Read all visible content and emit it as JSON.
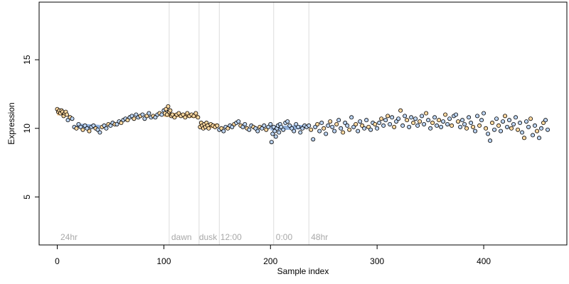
{
  "chart_data": {
    "type": "scatter",
    "title": "",
    "xlabel": "Sample index",
    "ylabel": "Expression",
    "xlim": [
      -17,
      478
    ],
    "ylim": [
      1.5,
      19.2
    ],
    "x_ticks": [
      0,
      100,
      200,
      300,
      400
    ],
    "y_ticks": [
      5,
      10,
      15
    ],
    "grid": false,
    "legend": "none",
    "colors": {
      "background": "#ffffff",
      "frame": "#000000",
      "divider": "#dcdcdc",
      "label": "#a8a8a8",
      "point_stroke": "#000000",
      "light": "#ffd9a0",
      "dark": "#bcd4f2",
      "band_light": "#f2b25c",
      "band_dark": "#7ea4d8"
    },
    "region_dividers": [
      105,
      133,
      152,
      203,
      236
    ],
    "region_labels": [
      {
        "x": 3,
        "text": "24hr"
      },
      {
        "x": 107,
        "text": "dawn"
      },
      {
        "x": 133,
        "text": "dusk"
      },
      {
        "x": 153,
        "text": "12:00"
      },
      {
        "x": 205,
        "text": "0:00"
      },
      {
        "x": 238,
        "text": "48hr"
      }
    ],
    "trend_segments": [
      {
        "group": "light",
        "x": [
          0,
          8
        ],
        "y": [
          11.1,
          11.1
        ]
      },
      {
        "group": "dark",
        "x": [
          18,
          40
        ],
        "y": [
          10.2,
          10.1
        ]
      },
      {
        "group": "light",
        "x": [
          100,
          132
        ],
        "y": [
          11.0,
          10.9
        ]
      },
      {
        "group": "light",
        "x": [
          133,
          150
        ],
        "y": [
          10.1,
          10.2
        ]
      },
      {
        "group": "dark",
        "x": [
          200,
          232
        ],
        "y": [
          10.0,
          10.1
        ]
      }
    ],
    "series": [
      {
        "name": "",
        "group": "light",
        "x": [
          0,
          1,
          2,
          3,
          4,
          5,
          6,
          7,
          8,
          9
        ],
        "y": [
          11.4,
          11.2,
          11.3,
          11.1,
          11.3,
          11.2,
          10.9,
          11.1,
          11.2,
          11.0
        ]
      },
      {
        "name": "",
        "group": "mixed",
        "x": [
          10,
          12,
          14,
          16,
          18,
          20,
          22,
          24,
          26,
          28,
          30,
          32,
          34,
          36,
          38,
          40,
          42,
          44,
          46,
          48,
          50,
          52,
          54,
          56,
          58,
          60,
          62,
          64,
          66,
          68,
          70,
          72,
          74,
          76,
          78,
          80,
          82,
          84,
          86,
          88,
          90,
          92,
          94,
          96,
          98,
          100
        ],
        "y": [
          10.6,
          10.8,
          10.7,
          10.1,
          10.0,
          10.3,
          10.1,
          9.9,
          10.2,
          10.0,
          9.8,
          10.1,
          10.2,
          10.0,
          9.9,
          9.7,
          10.1,
          10.2,
          10.0,
          10.3,
          10.2,
          10.4,
          10.3,
          10.3,
          10.5,
          10.4,
          10.6,
          10.7,
          10.6,
          10.8,
          10.9,
          10.7,
          11.0,
          10.8,
          10.9,
          11.0,
          10.7,
          10.9,
          11.1,
          10.8,
          10.9,
          10.8,
          11.0,
          11.1,
          11.0,
          11.3
        ]
      },
      {
        "name": "",
        "group": "light",
        "x": [
          101,
          102,
          103,
          104,
          105,
          106,
          107,
          108,
          110,
          112,
          114,
          116,
          118,
          120,
          122,
          124,
          126,
          128,
          130,
          132
        ],
        "y": [
          11.1,
          11.4,
          11.0,
          11.6,
          11.2,
          11.3,
          10.9,
          11.0,
          10.8,
          11.0,
          11.1,
          10.9,
          11.0,
          10.8,
          11.1,
          10.9,
          11.0,
          10.9,
          11.1,
          10.8
        ]
      },
      {
        "name": "",
        "group": "light",
        "x": [
          134,
          135,
          136,
          137,
          138,
          139,
          140,
          141,
          142,
          144,
          146,
          148,
          150
        ],
        "y": [
          10.1,
          10.4,
          10.2,
          10.0,
          10.3,
          10.1,
          10.4,
          10.2,
          10.0,
          10.3,
          10.2,
          10.1,
          10.2
        ]
      },
      {
        "name": "",
        "group": "mixed",
        "x": [
          152,
          154,
          156,
          158,
          160,
          162,
          164,
          166,
          168,
          170,
          172,
          174,
          176,
          178,
          180,
          182,
          184,
          186,
          188,
          190,
          192,
          194,
          196,
          198,
          200
        ],
        "y": [
          9.9,
          10.0,
          9.8,
          10.1,
          10.0,
          10.2,
          10.1,
          10.3,
          10.4,
          10.5,
          10.2,
          10.1,
          10.3,
          10.0,
          9.9,
          10.2,
          10.1,
          10.0,
          9.8,
          10.1,
          10.0,
          10.2,
          9.9,
          10.1,
          10.3
        ]
      },
      {
        "name": "",
        "group": "dark",
        "x": [
          201,
          202,
          203,
          204,
          205,
          206,
          207,
          208,
          209,
          210,
          212,
          214,
          216,
          218,
          220,
          222,
          224,
          226,
          228,
          230,
          232,
          234
        ],
        "y": [
          9.0,
          9.6,
          10.1,
          9.8,
          9.4,
          10.0,
          10.2,
          9.7,
          10.3,
          10.1,
          9.9,
          10.4,
          10.5,
          10.2,
          10.0,
          9.8,
          10.3,
          10.1,
          9.7,
          10.0,
          10.2,
          10.1
        ]
      },
      {
        "name": "",
        "group": "mixed",
        "x": [
          236,
          238,
          240,
          242,
          244,
          246,
          248,
          250,
          252,
          254,
          256,
          258,
          260,
          262,
          264,
          266,
          268,
          270,
          272,
          274,
          276,
          278,
          280,
          282,
          284,
          286,
          288,
          290,
          292,
          294,
          296,
          298,
          300
        ],
        "y": [
          10.2,
          9.9,
          9.2,
          10.1,
          10.3,
          9.8,
          10.4,
          10.0,
          9.6,
          10.2,
          10.5,
          10.1,
          9.8,
          10.3,
          10.6,
          10.0,
          9.7,
          10.4,
          10.2,
          9.9,
          10.8,
          10.1,
          10.3,
          9.8,
          10.5,
          10.2,
          10.0,
          10.6,
          10.1,
          9.9,
          10.4,
          10.3,
          10.0
        ]
      },
      {
        "name": "",
        "group": "mixed",
        "x": [
          302,
          304,
          306,
          308,
          310,
          312,
          314,
          316,
          318,
          320,
          322,
          324,
          326,
          328,
          330,
          332,
          334,
          336,
          338,
          340,
          342,
          344,
          346,
          348,
          350,
          352,
          354,
          356,
          358,
          360,
          362,
          364,
          366,
          368,
          370,
          372,
          374,
          376,
          378,
          380
        ],
        "y": [
          10.4,
          10.7,
          10.2,
          10.6,
          10.9,
          10.3,
          10.8,
          10.1,
          10.5,
          10.7,
          11.3,
          10.2,
          10.9,
          10.6,
          10.1,
          10.8,
          10.4,
          10.7,
          10.2,
          10.5,
          10.9,
          10.3,
          11.1,
          10.6,
          10.0,
          10.4,
          10.8,
          10.2,
          10.6,
          10.1,
          10.5,
          11.0,
          10.3,
          10.7,
          10.2,
          10.9,
          11.0,
          10.5,
          10.1,
          10.6
        ]
      },
      {
        "name": "",
        "group": "mixed",
        "x": [
          382,
          384,
          386,
          388,
          390,
          392,
          394,
          396,
          398,
          400,
          402,
          404,
          406,
          408,
          410,
          412,
          414,
          416,
          418,
          420,
          422,
          424,
          426,
          428,
          430,
          432,
          434,
          436,
          438,
          440,
          442,
          444,
          446,
          448,
          450,
          452,
          454,
          456,
          458,
          460
        ],
        "y": [
          10.3,
          10.0,
          10.8,
          10.4,
          10.1,
          9.8,
          10.9,
          10.2,
          10.6,
          11.1,
          10.0,
          9.6,
          9.1,
          10.4,
          9.9,
          10.7,
          10.2,
          9.8,
          10.5,
          10.9,
          10.1,
          10.6,
          10.0,
          10.3,
          10.8,
          9.9,
          10.4,
          9.7,
          9.3,
          10.5,
          10.1,
          10.7,
          9.5,
          10.2,
          9.8,
          9.3,
          10.0,
          10.4,
          10.6,
          9.9
        ]
      }
    ]
  }
}
